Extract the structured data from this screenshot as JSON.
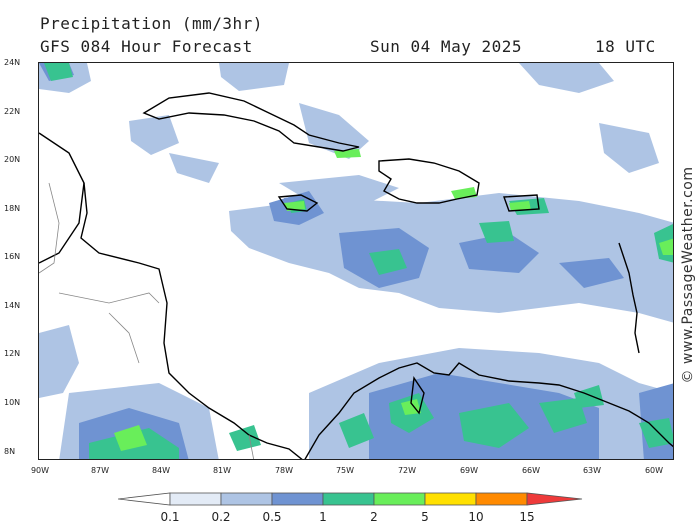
{
  "header": {
    "title": "Precipitation (mm/3hr)",
    "subtitle": "GFS 084 Hour Forecast",
    "date": "Sun 04 May 2025",
    "time": "18 UTC"
  },
  "watermark": "© www.PassageWeather.com",
  "map": {
    "lat_labels": [
      "24N",
      "22N",
      "20N",
      "18N",
      "16N",
      "14N",
      "12N",
      "10N",
      "8N"
    ],
    "lon_labels": [
      "90W",
      "87W",
      "84W",
      "81W",
      "78W",
      "75W",
      "72W",
      "69W",
      "66W",
      "63W",
      "60W"
    ],
    "colors": {
      "land_outline": "#000000",
      "border_line": "#888888",
      "frame": "#222222"
    }
  },
  "legend": {
    "labels": [
      "0.1",
      "0.2",
      "0.5",
      "1",
      "2",
      "5",
      "10",
      "15"
    ],
    "colors": [
      "#ffffff",
      "#e3ebf6",
      "#aec4e4",
      "#6f93d2",
      "#38c390",
      "#69ee5a",
      "#ffe000",
      "#ff8a00",
      "#ee3a3a"
    ]
  }
}
